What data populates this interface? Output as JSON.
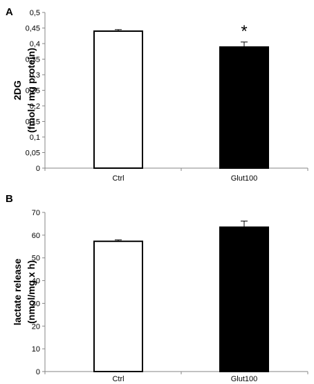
{
  "chart_data": [
    {
      "panel": "A",
      "type": "bar",
      "ylabel_lines": [
        "2DG",
        "(fmol / mg protein)"
      ],
      "categories": [
        "Ctrl",
        "Glut100"
      ],
      "values": [
        0.44,
        0.389
      ],
      "errors": [
        0.005,
        0.016
      ],
      "bar_colors": [
        "#ffffff",
        "#000000"
      ],
      "ylim": [
        0,
        0.5
      ],
      "yticks": [
        "0",
        "0,05",
        "0,1",
        "0,15",
        "0,2",
        "0,25",
        "0,3",
        "0,35",
        "0,4",
        "0,45",
        "0,5"
      ],
      "annotations": [
        "",
        "*"
      ],
      "grid": false
    },
    {
      "panel": "B",
      "type": "bar",
      "ylabel_lines": [
        "lactate release",
        "(nmol/mg x h)"
      ],
      "categories": [
        "Ctrl",
        "Glut100"
      ],
      "values": [
        57.3,
        63.5
      ],
      "errors": [
        0.6,
        2.7
      ],
      "bar_colors": [
        "#ffffff",
        "#000000"
      ],
      "ylim": [
        0,
        70
      ],
      "yticks": [
        "0",
        "10",
        "20",
        "30",
        "40",
        "50",
        "60",
        "70"
      ],
      "annotations": [
        "",
        ""
      ],
      "grid": false
    }
  ]
}
